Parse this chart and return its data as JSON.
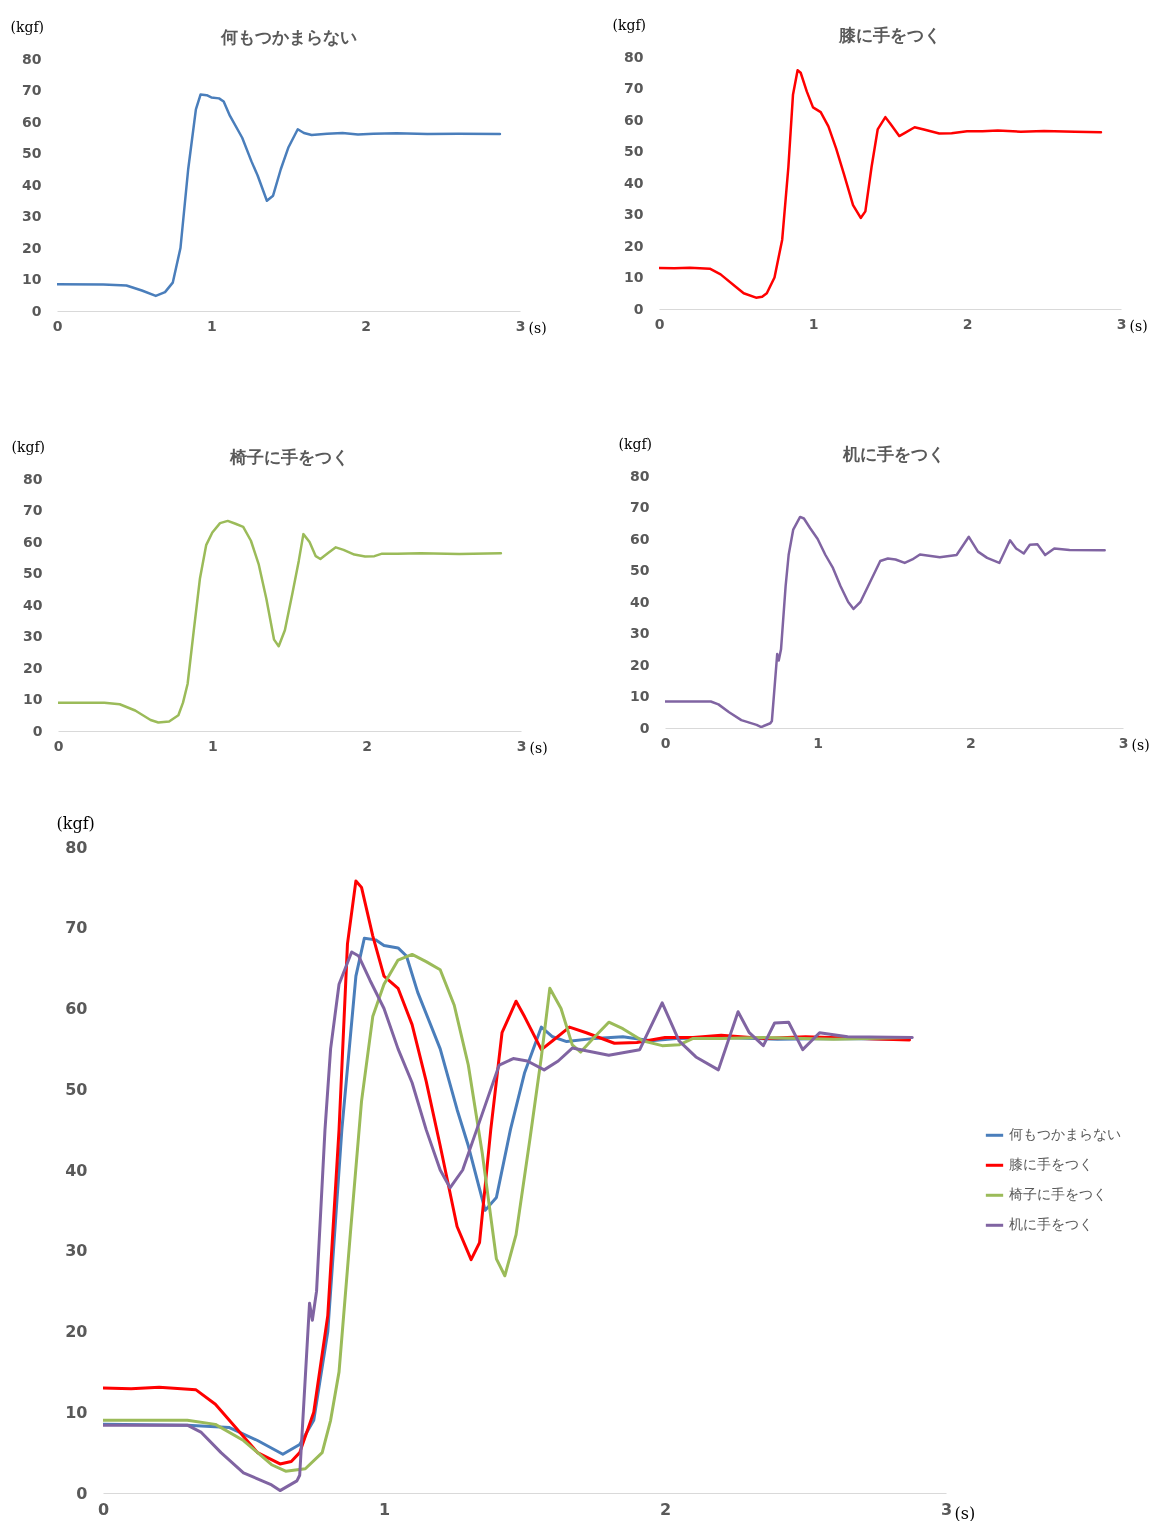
{
  "chart_data": [
    {
      "type": "line",
      "title": "何もつかまらない",
      "xlabel": "(s)",
      "ylabel": "(kgf)",
      "xlim": [
        0,
        3
      ],
      "xticks": [
        0,
        1,
        2,
        3
      ],
      "ylim": [
        0,
        80
      ],
      "yticks": [
        0,
        10,
        20,
        30,
        40,
        50,
        60,
        70,
        80
      ],
      "series": [
        {
          "color": "#4a7ebb",
          "x": [
            0,
            0.3,
            0.45,
            0.55,
            0.64,
            0.7,
            0.75,
            0.8,
            0.85,
            0.9,
            0.93,
            0.97,
            1.0,
            1.05,
            1.08,
            1.12,
            1.2,
            1.26,
            1.3,
            1.36,
            1.4,
            1.45,
            1.5,
            1.56,
            1.6,
            1.65,
            1.75,
            1.85,
            1.95,
            2.05,
            2.2,
            2.4,
            2.6,
            2.87
          ],
          "values": [
            8.5,
            8.4,
            8.1,
            6.5,
            4.8,
            6,
            9,
            20,
            45,
            64,
            68.7,
            68.5,
            67.8,
            67.5,
            66.5,
            62,
            55,
            47.5,
            43,
            35,
            36.6,
            45,
            52,
            57.7,
            56.5,
            55.9,
            56.3,
            56.5,
            56,
            56.3,
            56.4,
            56.2,
            56.3,
            56.2
          ]
        }
      ]
    },
    {
      "type": "line",
      "title": "膝に手をつく",
      "xlabel": "(s)",
      "ylabel": "(kgf)",
      "xlim": [
        0,
        3
      ],
      "xticks": [
        0,
        1,
        2,
        3
      ],
      "ylim": [
        0,
        80
      ],
      "yticks": [
        0,
        10,
        20,
        30,
        40,
        50,
        60,
        70,
        80
      ],
      "series": [
        {
          "color": "#ff0000",
          "x": [
            0,
            0.1,
            0.2,
            0.33,
            0.4,
            0.5,
            0.55,
            0.63,
            0.67,
            0.7,
            0.75,
            0.8,
            0.84,
            0.87,
            0.9,
            0.92,
            0.96,
            1.0,
            1.05,
            1.1,
            1.15,
            1.2,
            1.26,
            1.31,
            1.34,
            1.38,
            1.42,
            1.47,
            1.5,
            1.56,
            1.6,
            1.66,
            1.72,
            1.82,
            1.9,
            2.0,
            2.1,
            2.2,
            2.35,
            2.5,
            2.7,
            2.87
          ],
          "values": [
            13,
            12.9,
            13.1,
            12.8,
            11,
            7,
            5,
            3.6,
            3.9,
            5,
            10,
            22,
            45,
            68,
            75.8,
            75,
            69,
            64,
            62.5,
            58,
            51,
            43,
            33,
            28.9,
            31,
            45,
            57,
            60.9,
            59,
            54.9,
            56,
            57.7,
            57,
            55.7,
            55.8,
            56.4,
            56.4,
            56.7,
            56.3,
            56.5,
            56.3,
            56.1
          ]
        }
      ]
    },
    {
      "type": "line",
      "title": "椅子に手をつく",
      "xlabel": "(s)",
      "ylabel": "(kgf)",
      "xlim": [
        0,
        3
      ],
      "xticks": [
        0,
        1,
        2,
        3
      ],
      "ylim": [
        0,
        80
      ],
      "yticks": [
        0,
        10,
        20,
        30,
        40,
        50,
        60,
        70,
        80
      ],
      "series": [
        {
          "color": "#9bbb59",
          "x": [
            0,
            0.3,
            0.4,
            0.5,
            0.6,
            0.65,
            0.72,
            0.78,
            0.81,
            0.84,
            0.88,
            0.92,
            0.96,
            1.0,
            1.05,
            1.1,
            1.15,
            1.2,
            1.25,
            1.3,
            1.35,
            1.4,
            1.43,
            1.47,
            1.52,
            1.56,
            1.59,
            1.63,
            1.67,
            1.7,
            1.75,
            1.8,
            1.85,
            1.92,
            1.99,
            2.05,
            2.1,
            2.2,
            2.35,
            2.6,
            2.87
          ],
          "values": [
            9,
            9,
            8.5,
            6.5,
            3.5,
            2.7,
            3,
            5,
            9,
            15,
            32,
            48.5,
            59,
            63,
            66,
            66.7,
            65.8,
            64.8,
            60.4,
            53,
            42,
            29,
            26.9,
            32,
            44,
            54,
            62.5,
            60,
            55.5,
            54.6,
            56.5,
            58.3,
            57.5,
            56,
            55.4,
            55.5,
            56.3,
            56.3,
            56.4,
            56.2,
            56.4
          ]
        }
      ]
    },
    {
      "type": "line",
      "title": "机に手をつく",
      "xlabel": "(s)",
      "ylabel": "(kgf)",
      "xlim": [
        0,
        3
      ],
      "xticks": [
        0,
        1,
        2,
        3
      ],
      "ylim": [
        0,
        80
      ],
      "yticks": [
        0,
        10,
        20,
        30,
        40,
        50,
        60,
        70,
        80
      ],
      "series": [
        {
          "color": "#8064a2",
          "x": [
            0,
            0.3,
            0.35,
            0.42,
            0.5,
            0.6,
            0.63,
            0.69,
            0.7,
            0.735,
            0.745,
            0.76,
            0.79,
            0.81,
            0.84,
            0.885,
            0.91,
            0.95,
            1.0,
            1.05,
            1.1,
            1.15,
            1.2,
            1.235,
            1.28,
            1.33,
            1.41,
            1.46,
            1.51,
            1.57,
            1.62,
            1.67,
            1.8,
            1.91,
            1.99,
            2.05,
            2.11,
            2.19,
            2.26,
            2.3,
            2.35,
            2.39,
            2.44,
            2.49,
            2.55,
            2.65,
            2.88
          ],
          "values": [
            8.4,
            8.4,
            7.5,
            5,
            2.5,
            1,
            0.3,
            1.5,
            2.2,
            23.5,
            21.4,
            25,
            45,
            55,
            63,
            67,
            66.5,
            63.5,
            60,
            55,
            50.8,
            45,
            40,
            37.8,
            40,
            45,
            53,
            53.8,
            53.5,
            52.4,
            53.5,
            55.1,
            54.2,
            54.9,
            60.7,
            56,
            54,
            52.4,
            59.6,
            57,
            55.4,
            58.2,
            58.3,
            54.9,
            57,
            56.5,
            56.4
          ]
        }
      ]
    },
    {
      "type": "line",
      "xlabel": "(s)",
      "ylabel": "(kgf)",
      "xlim": [
        0,
        3
      ],
      "xticks": [
        0,
        1,
        2,
        3
      ],
      "ylim": [
        0,
        80
      ],
      "yticks": [
        0,
        10,
        20,
        30,
        40,
        50,
        60,
        70,
        80
      ],
      "legend": "right",
      "series": [
        {
          "name": "何もつかまらない",
          "color": "#4a7ebb",
          "x": [
            0,
            0.3,
            0.45,
            0.55,
            0.64,
            0.7,
            0.75,
            0.8,
            0.85,
            0.9,
            0.93,
            0.97,
            1.0,
            1.05,
            1.08,
            1.12,
            1.2,
            1.26,
            1.3,
            1.36,
            1.4,
            1.45,
            1.5,
            1.56,
            1.6,
            1.65,
            1.75,
            1.85,
            1.95,
            2.05,
            2.2,
            2.4,
            2.6,
            2.87
          ],
          "values": [
            8.5,
            8.4,
            8.1,
            6.5,
            4.8,
            6,
            9,
            20,
            45,
            64,
            68.7,
            68.5,
            67.8,
            67.5,
            66.5,
            62,
            55,
            47.5,
            43,
            35,
            36.6,
            45,
            52,
            57.7,
            56.5,
            55.9,
            56.3,
            56.5,
            56,
            56.3,
            56.4,
            56.2,
            56.3,
            56.2
          ]
        },
        {
          "name": "膝に手をつく",
          "color": "#ff0000",
          "x": [
            0,
            0.1,
            0.2,
            0.33,
            0.4,
            0.5,
            0.55,
            0.63,
            0.67,
            0.7,
            0.75,
            0.8,
            0.84,
            0.87,
            0.9,
            0.92,
            0.96,
            1.0,
            1.05,
            1.1,
            1.15,
            1.2,
            1.26,
            1.31,
            1.34,
            1.38,
            1.42,
            1.47,
            1.5,
            1.56,
            1.6,
            1.66,
            1.72,
            1.82,
            1.9,
            2.0,
            2.1,
            2.2,
            2.35,
            2.5,
            2.7,
            2.87
          ],
          "values": [
            13,
            12.9,
            13.1,
            12.8,
            11,
            7,
            5,
            3.6,
            3.9,
            5,
            10,
            22,
            45,
            68,
            75.8,
            75,
            69,
            64,
            62.5,
            58,
            51,
            43,
            33,
            28.9,
            31,
            45,
            57,
            60.9,
            59,
            54.9,
            56,
            57.7,
            57,
            55.7,
            55.8,
            56.4,
            56.4,
            56.7,
            56.3,
            56.5,
            56.3,
            56.1
          ]
        },
        {
          "name": "椅子に手をつく",
          "color": "#9bbb59",
          "x": [
            0,
            0.3,
            0.4,
            0.5,
            0.6,
            0.65,
            0.72,
            0.78,
            0.81,
            0.84,
            0.88,
            0.92,
            0.96,
            1.0,
            1.05,
            1.1,
            1.15,
            1.2,
            1.25,
            1.3,
            1.35,
            1.4,
            1.43,
            1.47,
            1.52,
            1.56,
            1.59,
            1.63,
            1.67,
            1.7,
            1.75,
            1.8,
            1.85,
            1.92,
            1.99,
            2.05,
            2.1,
            2.2,
            2.35,
            2.6,
            2.87
          ],
          "values": [
            9,
            9,
            8.5,
            6.5,
            3.5,
            2.7,
            3,
            5,
            9,
            15,
            32,
            48.5,
            59,
            63,
            66,
            66.7,
            65.8,
            64.8,
            60.4,
            53,
            42,
            29,
            26.9,
            32,
            44,
            54,
            62.5,
            60,
            55.5,
            54.6,
            56.5,
            58.3,
            57.5,
            56,
            55.4,
            55.5,
            56.3,
            56.3,
            56.4,
            56.2,
            56.4
          ]
        },
        {
          "name": "机に手をつく",
          "color": "#8064a2",
          "x": [
            0,
            0.3,
            0.35,
            0.42,
            0.5,
            0.6,
            0.63,
            0.69,
            0.7,
            0.735,
            0.745,
            0.76,
            0.79,
            0.81,
            0.84,
            0.885,
            0.91,
            0.95,
            1.0,
            1.05,
            1.1,
            1.15,
            1.2,
            1.235,
            1.28,
            1.33,
            1.41,
            1.46,
            1.51,
            1.57,
            1.62,
            1.67,
            1.8,
            1.91,
            1.99,
            2.05,
            2.11,
            2.19,
            2.26,
            2.3,
            2.35,
            2.39,
            2.44,
            2.49,
            2.55,
            2.65,
            2.88
          ],
          "values": [
            8.4,
            8.4,
            7.5,
            5,
            2.5,
            1,
            0.3,
            1.5,
            2.2,
            23.5,
            21.4,
            25,
            45,
            55,
            63,
            67,
            66.5,
            63.5,
            60,
            55,
            50.8,
            45,
            40,
            37.8,
            40,
            45,
            53,
            53.8,
            53.5,
            52.4,
            53.5,
            55.1,
            54.2,
            54.9,
            60.7,
            56,
            54,
            52.4,
            59.6,
            57,
            55.4,
            58.2,
            58.3,
            54.9,
            57,
            56.5,
            56.4
          ]
        }
      ]
    }
  ]
}
